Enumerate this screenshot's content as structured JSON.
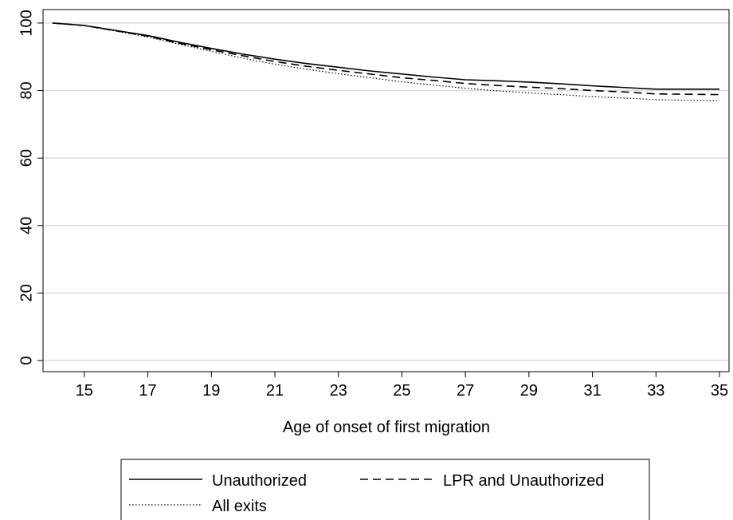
{
  "chart_data": {
    "type": "line",
    "x_label": "Age of onset of first migration",
    "x": [
      14,
      15,
      16,
      17,
      18,
      19,
      20,
      21,
      22,
      23,
      24,
      25,
      26,
      27,
      28,
      29,
      30,
      31,
      32,
      33,
      34,
      35
    ],
    "series": [
      {
        "name": "Unauthorized",
        "color": "#000000",
        "dash": "solid",
        "values": [
          100,
          99.3,
          97.8,
          96.3,
          94.3,
          92.5,
          90.8,
          89.3,
          88,
          86.9,
          85.8,
          84.9,
          84,
          83.2,
          82.9,
          82.5,
          82,
          81.4,
          80.9,
          80.4,
          80.4,
          80.4
        ]
      },
      {
        "name": "LPR and Unauthorized",
        "color": "#000000",
        "dash": "dashed",
        "values": [
          100,
          99.3,
          97.7,
          96.1,
          94,
          92.1,
          90.3,
          88.6,
          87.2,
          86,
          84.9,
          83.8,
          83,
          82.1,
          81.5,
          81,
          80.6,
          80,
          79.6,
          79,
          78.9,
          78.8
        ]
      },
      {
        "name": "All exits",
        "color": "#000000",
        "dash": "dotted",
        "values": [
          100,
          99.2,
          97.6,
          95.9,
          93.7,
          91.6,
          89.6,
          87.8,
          86.3,
          85,
          83.8,
          82.6,
          81.6,
          80.7,
          79.9,
          79.3,
          78.8,
          78.2,
          77.8,
          77.3,
          77.1,
          77
        ]
      }
    ],
    "xlim": [
      13.7,
      35.3
    ],
    "xticks": [
      15,
      17,
      19,
      21,
      23,
      25,
      27,
      29,
      31,
      33,
      35
    ],
    "ylim": [
      -3.3,
      104
    ],
    "yticks": [
      0,
      20,
      40,
      60,
      80,
      100
    ],
    "grid": true,
    "legend": "bottom"
  }
}
